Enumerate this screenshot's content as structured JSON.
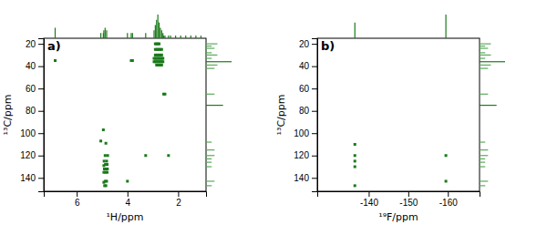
{
  "chart_data": [
    {
      "type": "scatter",
      "title": "a)",
      "xlabel": "¹H/ppm",
      "ylabel": "¹³C/ppm",
      "xlim": [
        7.3,
        0.9
      ],
      "ylim": [
        152,
        15
      ],
      "xticks": [
        6.0,
        4.0,
        2.0
      ],
      "yticks": [
        20.0,
        40.0,
        60.0,
        80.0,
        100.0,
        120.0,
        140.0
      ],
      "color": "#1a7a1a",
      "marker": "square",
      "x": [
        6.85,
        4.95,
        5.05,
        4.85,
        4.78,
        4.88,
        4.82,
        4.92,
        4.8,
        4.87,
        4.93,
        4.79,
        4.85,
        4.91,
        4.8,
        4.87,
        4.93,
        4.82,
        4.88,
        4.93,
        4.85,
        4.9,
        4.0,
        3.8,
        3.85,
        3.28,
        2.75,
        2.8,
        2.85,
        2.9,
        2.65,
        2.7,
        2.75,
        2.8,
        2.85,
        2.9,
        2.65,
        2.7,
        2.75,
        2.8,
        2.85,
        2.9,
        2.6,
        2.65,
        2.7,
        2.75,
        2.8,
        2.85,
        2.9,
        2.95,
        2.6,
        2.65,
        2.7,
        2.75,
        2.8,
        2.85,
        2.9,
        2.95,
        2.65,
        2.7,
        2.75,
        2.8,
        2.85,
        2.52,
        2.57,
        2.38
      ],
      "values": [
        35,
        97,
        107,
        109,
        120,
        120,
        125,
        125,
        128,
        128,
        129,
        132,
        132,
        132,
        135,
        135,
        135,
        143,
        143,
        144,
        147,
        147,
        143,
        35,
        35,
        120,
        20,
        20,
        20,
        20,
        25,
        25,
        25,
        25,
        25,
        25,
        30,
        30,
        30,
        30,
        30,
        30,
        33,
        33,
        33,
        33,
        33,
        33,
        33,
        33,
        36,
        36,
        36,
        36,
        36,
        36,
        36,
        36,
        39,
        39,
        39,
        39,
        39,
        65,
        65,
        120
      ],
      "top_projection": {
        "color": "#1a7a1a",
        "x": [
          1.1,
          1.3,
          1.5,
          1.7,
          1.9,
          2.1,
          2.3,
          2.38,
          2.52,
          2.57,
          2.6,
          2.65,
          2.7,
          2.75,
          2.8,
          2.85,
          2.9,
          2.95,
          3.28,
          3.8,
          3.85,
          4.0,
          4.82,
          4.88,
          4.93,
          4.95,
          5.05,
          6.85
        ],
        "values": [
          1,
          1,
          1,
          1,
          1,
          1,
          1,
          1,
          1,
          1,
          2,
          3,
          4,
          6,
          9,
          7,
          5,
          3,
          2,
          2,
          2,
          2,
          3,
          4,
          3,
          2,
          2,
          4
        ]
      },
      "right_projection": {
        "y": [
          20,
          22,
          24,
          28,
          30,
          33,
          36,
          39,
          42,
          65,
          75,
          108,
          115,
          120,
          123,
          126,
          130,
          143,
          147
        ],
        "values": [
          4,
          2,
          3,
          2,
          4,
          2,
          9,
          4,
          3,
          3,
          6,
          2,
          3,
          3,
          2,
          2,
          2,
          3,
          2
        ],
        "colors": [
          "#5aaa5a",
          "#5aaa5a",
          "#5aaa5a",
          "#5aaa5a",
          "#5aaa5a",
          "#5aaa5a",
          "#1a7a1a",
          "#5aaa5a",
          "#5aaa5a",
          "#5aaa5a",
          "#1a7a1a",
          "#5aaa5a",
          "#5aaa5a",
          "#5aaa5a",
          "#5aaa5a",
          "#5aaa5a",
          "#5aaa5a",
          "#5aaa5a",
          "#5aaa5a"
        ]
      }
    },
    {
      "type": "scatter",
      "title": "b)",
      "xlabel": "¹⁹F/ppm",
      "ylabel": "¹³C/ppm",
      "xlim": [
        -127,
        -168
      ],
      "ylim": [
        152,
        15
      ],
      "xticks": [
        -140.0,
        -150.0,
        -160.0
      ],
      "yticks": [
        20.0,
        40.0,
        60.0,
        80.0,
        100.0,
        120.0,
        140.0
      ],
      "color": "#1a7a1a",
      "marker": "square",
      "x": [
        -136.5,
        -136.5,
        -136.5,
        -136.5,
        -159.5,
        -159.5,
        -136.5
      ],
      "values": [
        110,
        120,
        125,
        130,
        120,
        143,
        147
      ],
      "top_projection": {
        "color": "#1a7a1a",
        "x": [
          -136.5,
          -159.5
        ],
        "values": [
          4,
          6
        ]
      },
      "right_projection": {
        "y": [
          20,
          22,
          24,
          28,
          30,
          33,
          36,
          39,
          42,
          65,
          75,
          108,
          115,
          120,
          123,
          126,
          130,
          143,
          147
        ],
        "values": [
          4,
          2,
          3,
          2,
          4,
          2,
          9,
          4,
          3,
          3,
          6,
          2,
          3,
          3,
          2,
          2,
          2,
          3,
          2
        ],
        "colors": [
          "#5aaa5a",
          "#5aaa5a",
          "#5aaa5a",
          "#5aaa5a",
          "#5aaa5a",
          "#5aaa5a",
          "#1a7a1a",
          "#5aaa5a",
          "#5aaa5a",
          "#5aaa5a",
          "#1a7a1a",
          "#5aaa5a",
          "#5aaa5a",
          "#5aaa5a",
          "#5aaa5a",
          "#5aaa5a",
          "#5aaa5a",
          "#5aaa5a",
          "#5aaa5a"
        ]
      }
    }
  ]
}
